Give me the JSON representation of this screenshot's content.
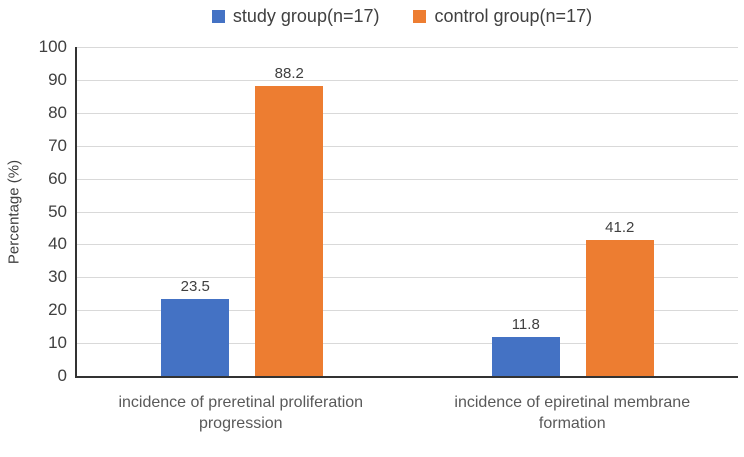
{
  "chart_data": {
    "type": "bar",
    "title": "",
    "categories": [
      "incidence of preretinal proliferation progression",
      "incidence of epiretinal membrane formation"
    ],
    "series": [
      {
        "name": "study group(n=17)",
        "color": "#4472C4",
        "values": [
          23.5,
          11.8
        ]
      },
      {
        "name": "control group(n=17)",
        "color": "#ED7D31",
        "values": [
          88.2,
          41.2
        ]
      }
    ],
    "xlabel": "",
    "ylabel": "Percentage (%)",
    "ylim": [
      0,
      100
    ],
    "yticks": [
      0,
      10,
      20,
      30,
      40,
      50,
      60,
      70,
      80,
      90,
      100
    ],
    "grid": "horizontal",
    "legend_position": "top",
    "data_labels": true
  },
  "colors": {
    "axis": "#333333",
    "gridline": "#D9D9D9",
    "tick_text": "#404040",
    "category_text": "#595959",
    "background": "#FFFFFF"
  }
}
